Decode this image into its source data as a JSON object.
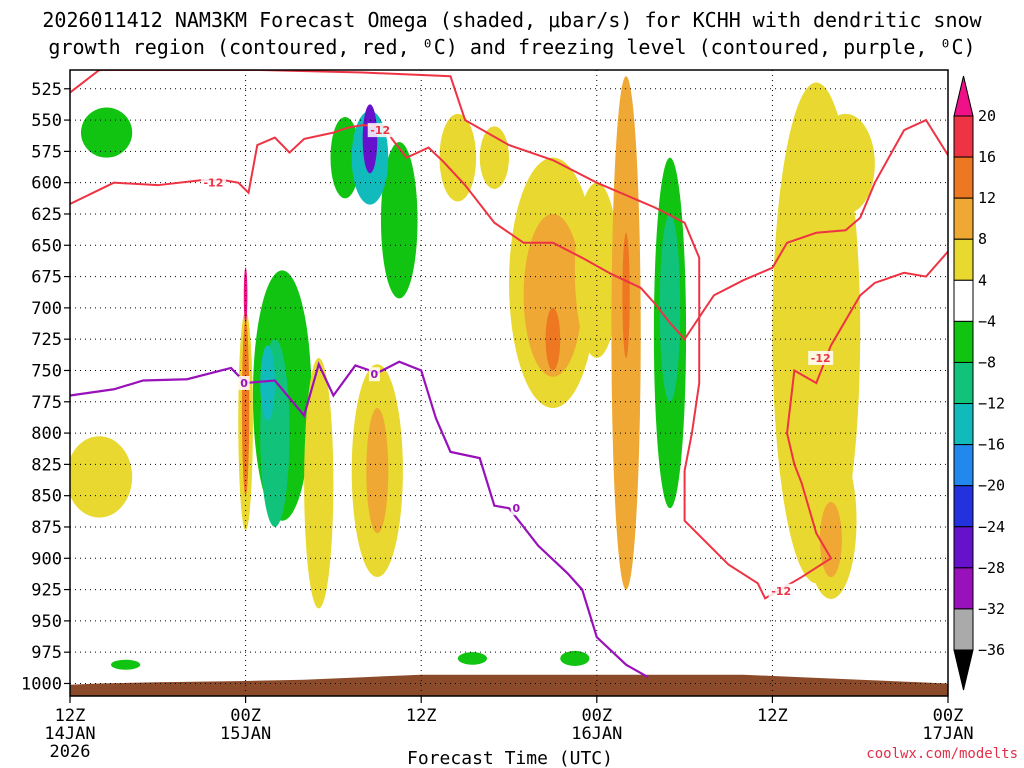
{
  "chart_data": {
    "type": "heatmap",
    "title_line1": "2026011412 NAM3KM Forecast Omega (shaded, μbar/s) for KCHH with dendritic snow",
    "title_line2": "growth region (contoured, red, ⁰C) and freezing level (contoured, purple, ⁰C)",
    "xlabel": "Forecast Time (UTC)",
    "credit": "coolwx.com/modelts",
    "x_range_hours": [
      0,
      60
    ],
    "x_ticks": [
      {
        "h": 0,
        "time": "12Z",
        "date": "14JAN",
        "year": "2026"
      },
      {
        "h": 12,
        "time": "00Z",
        "date": "15JAN",
        "year": ""
      },
      {
        "h": 24,
        "time": "12Z",
        "date": "",
        "year": ""
      },
      {
        "h": 36,
        "time": "00Z",
        "date": "16JAN",
        "year": ""
      },
      {
        "h": 48,
        "time": "12Z",
        "date": "",
        "year": ""
      },
      {
        "h": 60,
        "time": "00Z",
        "date": "17JAN",
        "year": ""
      }
    ],
    "y_range_mb": [
      1010,
      510
    ],
    "y_ticks": [
      525,
      550,
      575,
      600,
      625,
      650,
      675,
      700,
      725,
      750,
      775,
      800,
      825,
      850,
      875,
      900,
      925,
      950,
      975,
      1000
    ],
    "colorbar": {
      "labels": [
        "20",
        "16",
        "12",
        "8",
        "4",
        "−4",
        "−8",
        "−12",
        "−16",
        "−20",
        "−24",
        "−28",
        "−32",
        "−36"
      ],
      "colors": [
        "#ee1188",
        "#ee3344",
        "#ee7722",
        "#eea833",
        "#e8d830",
        "#ffffff",
        "#11c411",
        "#11c27a",
        "#11bbbb",
        "#2288ee",
        "#2233dd",
        "#6611cc",
        "#9911bb",
        "#aaaaaa",
        "#000000"
      ]
    },
    "omega_patches": [
      {
        "h": 2.0,
        "p": 835,
        "w": 4.5,
        "d": 65,
        "c": "#e8d830"
      },
      {
        "h": 2.5,
        "p": 560,
        "w": 3.5,
        "d": 40,
        "c": "#11c411"
      },
      {
        "h": 3.8,
        "p": 985,
        "w": 2.0,
        "d": 8,
        "c": "#11c411"
      },
      {
        "h": 12.0,
        "p": 790,
        "w": 1.0,
        "d": 175,
        "c": "#e8d830"
      },
      {
        "h": 12.0,
        "p": 780,
        "w": 0.5,
        "d": 140,
        "c": "#ee7722"
      },
      {
        "h": 12.0,
        "p": 690,
        "w": 0.25,
        "d": 45,
        "c": "#ee1188"
      },
      {
        "h": 14.5,
        "p": 770,
        "w": 4.0,
        "d": 200,
        "c": "#11c411"
      },
      {
        "h": 14.0,
        "p": 800,
        "w": 2.0,
        "d": 150,
        "c": "#11c27a"
      },
      {
        "h": 13.5,
        "p": 760,
        "w": 1.0,
        "d": 60,
        "c": "#11bbbb"
      },
      {
        "h": 17.0,
        "p": 840,
        "w": 2.0,
        "d": 200,
        "c": "#e8d830"
      },
      {
        "h": 18.8,
        "p": 580,
        "w": 2.0,
        "d": 65,
        "c": "#11c411"
      },
      {
        "h": 22.5,
        "p": 630,
        "w": 2.5,
        "d": 125,
        "c": "#11c411"
      },
      {
        "h": 20.5,
        "p": 580,
        "w": 2.5,
        "d": 75,
        "c": "#11bbbb"
      },
      {
        "h": 20.5,
        "p": 565,
        "w": 1.0,
        "d": 55,
        "c": "#6611cc"
      },
      {
        "h": 21.0,
        "p": 830,
        "w": 3.5,
        "d": 170,
        "c": "#e8d830"
      },
      {
        "h": 21.0,
        "p": 830,
        "w": 1.5,
        "d": 100,
        "c": "#eea833"
      },
      {
        "h": 26.5,
        "p": 580,
        "w": 2.5,
        "d": 70,
        "c": "#e8d830"
      },
      {
        "h": 29.0,
        "p": 580,
        "w": 2.0,
        "d": 50,
        "c": "#e8d830"
      },
      {
        "h": 33.0,
        "p": 680,
        "w": 6.0,
        "d": 200,
        "c": "#e8d830"
      },
      {
        "h": 33.0,
        "p": 690,
        "w": 4.0,
        "d": 130,
        "c": "#eea833"
      },
      {
        "h": 33.0,
        "p": 725,
        "w": 1.0,
        "d": 50,
        "c": "#ee7722"
      },
      {
        "h": 36.0,
        "p": 670,
        "w": 3.0,
        "d": 140,
        "c": "#e8d830"
      },
      {
        "h": 38.0,
        "p": 720,
        "w": 2.0,
        "d": 410,
        "c": "#eea833"
      },
      {
        "h": 38.0,
        "p": 690,
        "w": 0.5,
        "d": 100,
        "c": "#ee7722"
      },
      {
        "h": 41.0,
        "p": 720,
        "w": 2.2,
        "d": 280,
        "c": "#11c411"
      },
      {
        "h": 41.0,
        "p": 700,
        "w": 1.4,
        "d": 150,
        "c": "#11c27a"
      },
      {
        "h": 51.0,
        "p": 720,
        "w": 6.0,
        "d": 400,
        "c": "#e8d830"
      },
      {
        "h": 52.0,
        "p": 870,
        "w": 3.5,
        "d": 125,
        "c": "#e8d830"
      },
      {
        "h": 52.0,
        "p": 885,
        "w": 1.5,
        "d": 60,
        "c": "#eea833"
      },
      {
        "h": 53.0,
        "p": 585,
        "w": 4.0,
        "d": 80,
        "c": "#e8d830"
      },
      {
        "h": 27.5,
        "p": 980,
        "w": 2.0,
        "d": 10,
        "c": "#11c411"
      },
      {
        "h": 34.5,
        "p": 980,
        "w": 2.0,
        "d": 12,
        "c": "#11c411"
      }
    ],
    "freezing_level_0C": [
      [
        0,
        770
      ],
      [
        3,
        765
      ],
      [
        5,
        758
      ],
      [
        8,
        757
      ],
      [
        11,
        748
      ],
      [
        12,
        760
      ],
      [
        14,
        758
      ],
      [
        16,
        786
      ],
      [
        17,
        745
      ],
      [
        18,
        770
      ],
      [
        19.5,
        746
      ],
      [
        21,
        752
      ],
      [
        22.5,
        743
      ],
      [
        24,
        750
      ],
      [
        25,
        788
      ],
      [
        26,
        815
      ],
      [
        28,
        820
      ],
      [
        29,
        858
      ],
      [
        30,
        860
      ],
      [
        32,
        890
      ],
      [
        34,
        912
      ],
      [
        35,
        925
      ],
      [
        36,
        963
      ],
      [
        38,
        985
      ],
      [
        39.5,
        995
      ]
    ],
    "dgz_minus12_upper": [
      [
        0,
        617
      ],
      [
        3,
        600
      ],
      [
        6,
        602
      ],
      [
        9,
        598
      ],
      [
        10.5,
        598
      ],
      [
        11.5,
        600
      ],
      [
        12.2,
        608
      ],
      [
        12.8,
        570
      ],
      [
        14,
        564
      ],
      [
        15,
        576
      ],
      [
        16,
        565
      ],
      [
        18,
        560
      ],
      [
        19,
        556
      ],
      [
        20,
        554
      ],
      [
        21.5,
        555
      ],
      [
        22,
        565
      ],
      [
        23,
        580
      ],
      [
        24.5,
        572
      ],
      [
        25.5,
        583
      ],
      [
        27,
        602
      ],
      [
        29,
        632
      ],
      [
        31,
        648
      ],
      [
        33,
        648
      ],
      [
        35,
        660
      ],
      [
        37,
        673
      ],
      [
        39,
        684
      ],
      [
        40,
        697
      ],
      [
        41,
        712
      ],
      [
        42,
        725
      ],
      [
        44,
        690
      ],
      [
        46,
        678
      ],
      [
        48,
        668
      ],
      [
        49,
        648
      ],
      [
        51,
        640
      ],
      [
        53,
        638
      ],
      [
        54,
        628
      ],
      [
        55,
        600
      ],
      [
        57,
        558
      ],
      [
        58.5,
        550
      ],
      [
        60,
        578
      ]
    ],
    "dgz_minus12_lower": [
      [
        0,
        528
      ],
      [
        2,
        510
      ],
      [
        10,
        510
      ],
      [
        13,
        510
      ],
      [
        20,
        512
      ],
      [
        26,
        515
      ],
      [
        27,
        550
      ],
      [
        30,
        570
      ],
      [
        33,
        582
      ],
      [
        36,
        600
      ],
      [
        40,
        620
      ],
      [
        42,
        632
      ],
      [
        43,
        660
      ],
      [
        43,
        760
      ],
      [
        42.5,
        800
      ],
      [
        42,
        830
      ],
      [
        42,
        870
      ],
      [
        45,
        905
      ],
      [
        47,
        920
      ],
      [
        47.5,
        932
      ],
      [
        50,
        915
      ],
      [
        52,
        900
      ],
      [
        51,
        880
      ],
      [
        50,
        840
      ],
      [
        49.5,
        825
      ],
      [
        49,
        800
      ],
      [
        49.5,
        750
      ],
      [
        51,
        760
      ],
      [
        52,
        730
      ],
      [
        54,
        690
      ],
      [
        55,
        680
      ],
      [
        57,
        672
      ],
      [
        58.5,
        675
      ],
      [
        60,
        655
      ]
    ],
    "contour_labels": [
      {
        "h": 9.8,
        "p": 600,
        "text": "-12",
        "color": "#ee3344"
      },
      {
        "h": 21.2,
        "p": 558,
        "text": "-12",
        "color": "#ee3344"
      },
      {
        "h": 51.3,
        "p": 740,
        "text": "-12",
        "color": "#ee3344"
      },
      {
        "h": 48.6,
        "p": 926,
        "text": "-12",
        "color": "#ee3344"
      },
      {
        "h": 11.9,
        "p": 760,
        "text": "0",
        "color": "#9911bb"
      },
      {
        "h": 20.8,
        "p": 753,
        "text": "0",
        "color": "#9911bb"
      },
      {
        "h": 30.5,
        "p": 860,
        "text": "0",
        "color": "#9911bb"
      }
    ],
    "terrain_color": "#8b4a2a",
    "terrain": [
      [
        0,
        1010
      ],
      [
        0,
        1001
      ],
      [
        2,
        1000
      ],
      [
        6,
        999
      ],
      [
        12,
        998
      ],
      [
        16,
        997
      ],
      [
        20,
        995
      ],
      [
        24,
        993
      ],
      [
        30,
        993
      ],
      [
        36,
        993
      ],
      [
        40,
        993
      ],
      [
        46,
        993
      ],
      [
        50,
        995
      ],
      [
        54,
        997
      ],
      [
        58,
        999
      ],
      [
        60,
        1000
      ],
      [
        60,
        1010
      ]
    ]
  }
}
